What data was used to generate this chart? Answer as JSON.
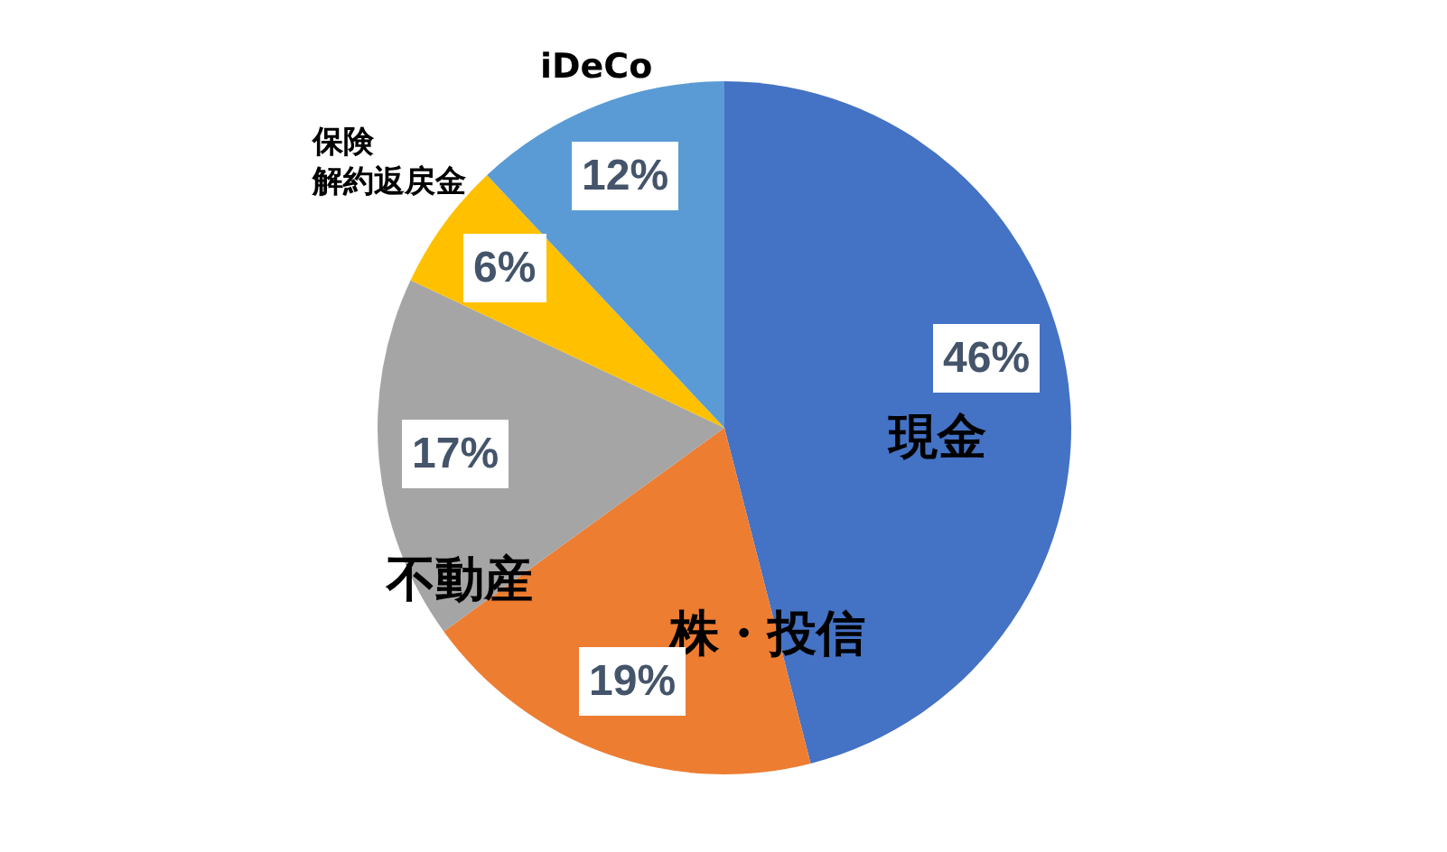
{
  "chart_data": {
    "type": "pie",
    "categories": [
      "現金",
      "株・投信",
      "不動産",
      "保険解約返戻金",
      "iDeCo"
    ],
    "values": [
      46,
      19,
      17,
      6,
      12
    ],
    "value_labels": [
      "46%",
      "19%",
      "17%",
      "6%",
      "12%"
    ],
    "colors": [
      "#4472c4",
      "#ed7d31",
      "#a5a5a5",
      "#ffc000",
      "#5b9bd5"
    ]
  }
}
